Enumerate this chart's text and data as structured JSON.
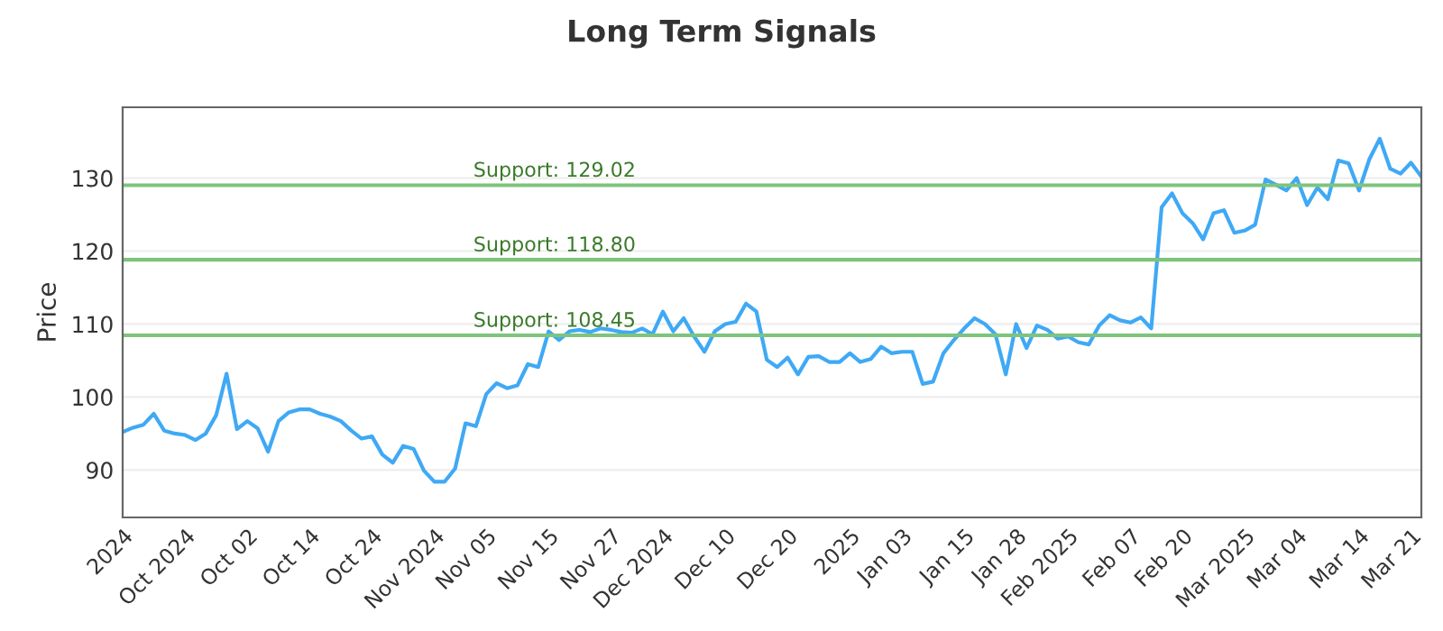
{
  "chart_data": {
    "type": "line",
    "title": "Long Term Signals",
    "ylabel": "Price",
    "categories": [
      "2024",
      null,
      null,
      null,
      null,
      null,
      "Oct 2024",
      null,
      null,
      null,
      null,
      null,
      "Oct 02",
      null,
      null,
      null,
      null,
      null,
      "Oct 14",
      null,
      null,
      null,
      null,
      null,
      "Oct 24",
      null,
      null,
      null,
      null,
      null,
      "Nov 2024",
      null,
      null,
      null,
      null,
      "Nov 05",
      null,
      null,
      null,
      null,
      null,
      "Nov 15",
      null,
      null,
      null,
      null,
      null,
      "Nov 27",
      null,
      null,
      null,
      null,
      "Dec 2024",
      null,
      null,
      null,
      null,
      null,
      "Dec 10",
      null,
      null,
      null,
      null,
      null,
      "Dec 20",
      null,
      null,
      null,
      null,
      null,
      "2025",
      null,
      null,
      null,
      null,
      "Jan 03",
      null,
      null,
      null,
      null,
      null,
      "Jan 15",
      null,
      null,
      null,
      null,
      "Jan 28",
      null,
      null,
      null,
      null,
      "Feb 2025",
      null,
      null,
      null,
      null,
      null,
      "Feb 07",
      null,
      null,
      null,
      null,
      "Feb 20",
      null,
      null,
      null,
      null,
      null,
      "Mar 2025",
      null,
      null,
      null,
      null,
      "Mar 04",
      null,
      null,
      null,
      null,
      null,
      "Mar 14",
      null,
      null,
      null,
      null,
      "Mar 21",
      null
    ],
    "series": [
      {
        "color": "#3fa9f5",
        "values": [
          95.2,
          95.8,
          96.2,
          97.7,
          95.4,
          95.0,
          94.8,
          94.1,
          95.0,
          97.5,
          103.2,
          95.6,
          96.7,
          95.7,
          92.5,
          96.7,
          97.9,
          98.3,
          98.3,
          97.7,
          97.3,
          96.7,
          95.4,
          94.3,
          94.6,
          92.1,
          91.0,
          93.3,
          92.9,
          89.9,
          88.4,
          88.4,
          90.2,
          96.4,
          96.0,
          100.4,
          101.9,
          101.2,
          101.6,
          104.5,
          104.1,
          109.0,
          107.8,
          109.0,
          109.2,
          108.9,
          109.4,
          109.2,
          108.9,
          108.8,
          109.4,
          108.6,
          111.7,
          109.0,
          110.8,
          108.3,
          106.2,
          109.0,
          110.0,
          110.3,
          112.8,
          111.7,
          105.1,
          104.1,
          105.4,
          103.1,
          105.5,
          105.6,
          104.8,
          104.8,
          106.0,
          104.8,
          105.2,
          106.9,
          106.0,
          106.2,
          106.2,
          101.8,
          102.1,
          106.0,
          107.8,
          109.4,
          110.8,
          110.0,
          108.6,
          103.1,
          110.0,
          106.7,
          109.8,
          109.2,
          108.0,
          108.3,
          107.5,
          107.2,
          109.8,
          111.2,
          110.5,
          110.2,
          110.9,
          109.4,
          126.0,
          127.9,
          125.2,
          123.8,
          121.6,
          125.2,
          125.6,
          122.5,
          122.8,
          123.6,
          129.8,
          129.1,
          128.3,
          130.0,
          126.3,
          128.7,
          127.1,
          132.4,
          132.0,
          128.3,
          132.6,
          135.4,
          131.3,
          130.6,
          132.1,
          130.2
        ]
      }
    ],
    "ylim": [
      83.5,
      139.7
    ],
    "yticks": [
      90,
      100,
      110,
      120,
      130
    ],
    "grid": "y",
    "line_style": "solid",
    "ref_lines": [
      {
        "axis": "y",
        "value": 129.02,
        "label": "Support: 129.02",
        "color": "#7dc47d"
      },
      {
        "axis": "y",
        "value": 118.8,
        "label": "Support: 118.80",
        "color": "#7dc47d"
      },
      {
        "axis": "y",
        "value": 108.45,
        "label": "Support: 108.45",
        "color": "#7dc47d"
      }
    ]
  }
}
